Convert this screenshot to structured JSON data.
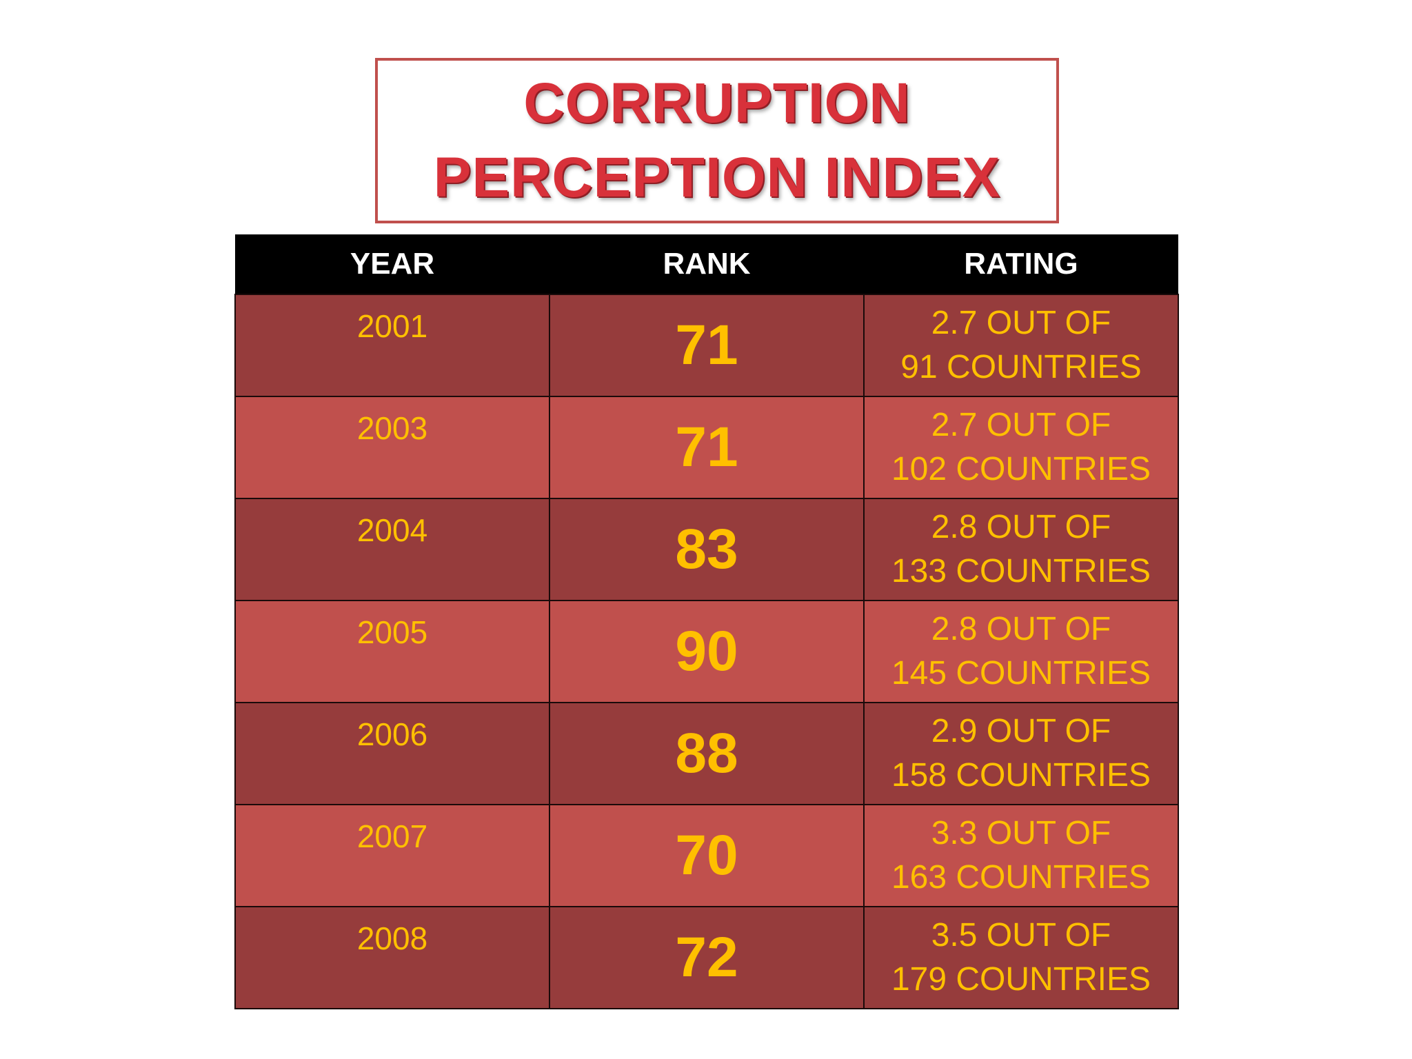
{
  "title": {
    "line1": "CORRUPTION",
    "line2": "PERCEPTION INDEX"
  },
  "table": {
    "headers": {
      "year": "YEAR",
      "rank": "RANK",
      "rating": "RATING"
    },
    "rows": [
      {
        "year": "2001",
        "rank": "71",
        "rating_line1": "2.7 OUT OF",
        "rating_line2": "91 COUNTRIES"
      },
      {
        "year": "2003",
        "rank": "71",
        "rating_line1": "2.7 OUT OF",
        "rating_line2": "102 COUNTRIES"
      },
      {
        "year": "2004",
        "rank": "83",
        "rating_line1": "2.8 OUT OF",
        "rating_line2": "133 COUNTRIES"
      },
      {
        "year": "2005",
        "rank": "90",
        "rating_line1": "2.8 OUT OF",
        "rating_line2": "145 COUNTRIES"
      },
      {
        "year": "2006",
        "rank": "88",
        "rating_line1": "2.9 OUT OF",
        "rating_line2": "158 COUNTRIES"
      },
      {
        "year": "2007",
        "rank": "70",
        "rating_line1": "3.3 OUT OF",
        "rating_line2": "163 COUNTRIES"
      },
      {
        "year": "2008",
        "rank": "72",
        "rating_line1": "3.5 OUT OF",
        "rating_line2": "179 COUNTRIES"
      }
    ]
  },
  "colors": {
    "title_text": "#d8313a",
    "title_border": "#c0504d",
    "header_bg": "#000000",
    "row_dark": "#963c3c",
    "row_light": "#c0504d",
    "cell_text": "#ffc000"
  }
}
